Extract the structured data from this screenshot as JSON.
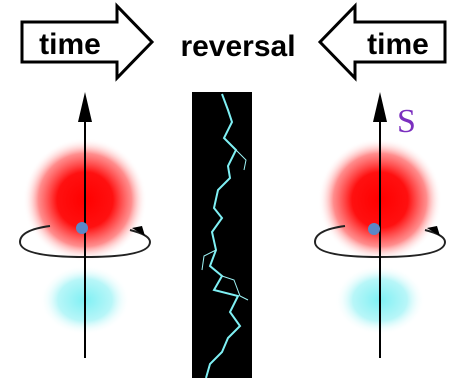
{
  "header": {
    "left_arrow_label": "time",
    "center_label": "reversal",
    "right_arrow_label": "time"
  },
  "figures": {
    "right_spin_label": "S"
  }
}
